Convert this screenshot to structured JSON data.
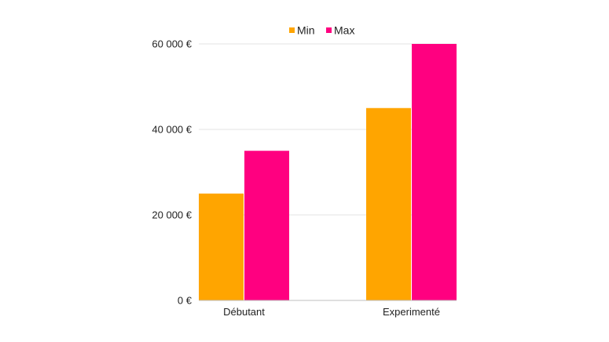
{
  "chart_data": {
    "type": "bar",
    "title": "",
    "xlabel": "",
    "ylabel": "",
    "categories": [
      "Débutant",
      "Experimenté"
    ],
    "series": [
      {
        "name": "Min",
        "color": "#FFA500",
        "values": [
          25000,
          45000
        ]
      },
      {
        "name": "Max",
        "color": "#FF0080",
        "values": [
          35000,
          60000
        ]
      }
    ],
    "ylim": [
      0,
      60000
    ],
    "yticks": [
      {
        "value": 0,
        "label": "0 €"
      },
      {
        "value": 20000,
        "label": "20 000 €"
      },
      {
        "value": 40000,
        "label": "40 000 €"
      },
      {
        "value": 60000,
        "label": "60 000 €"
      }
    ],
    "grid": true,
    "legend_position": "top"
  }
}
